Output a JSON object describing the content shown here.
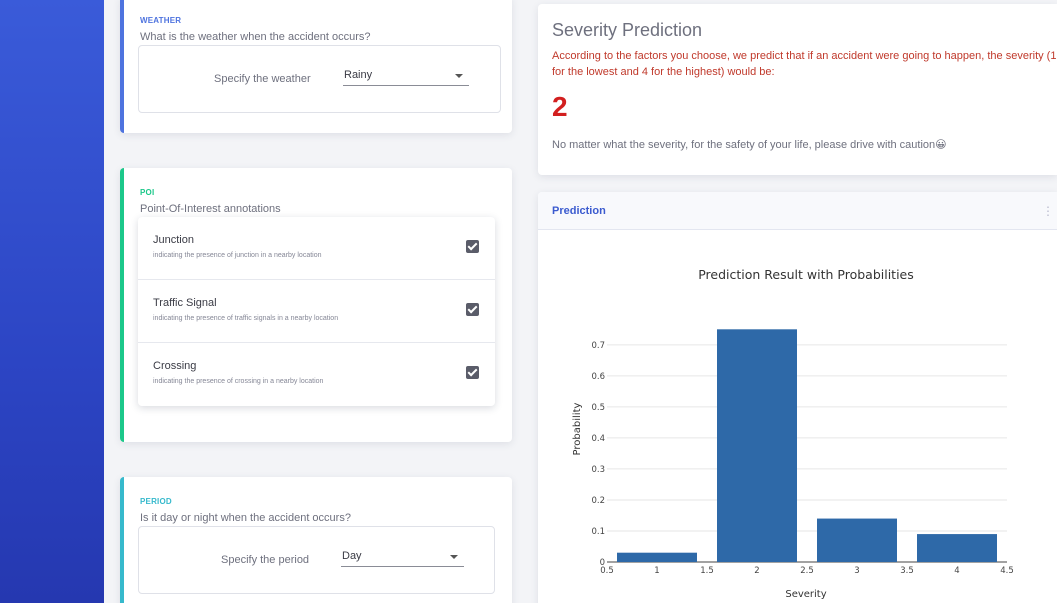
{
  "weather": {
    "section_label": "WEATHER",
    "question": "What is the weather when the accident occurs?",
    "field_label": "Specify the weather",
    "selected": "Rainy",
    "color": "#4e73df"
  },
  "poi": {
    "section_label": "POI",
    "question": "Point-Of-Interest annotations",
    "color": "#1cc88a",
    "items": [
      {
        "title": "Junction",
        "description": "indicating the presence of junction in a nearby location",
        "checked": true
      },
      {
        "title": "Traffic Signal",
        "description": "indicating the presence of traffic signals in a nearby location",
        "checked": true
      },
      {
        "title": "Crossing",
        "description": "indicating the presence of crossing in a nearby location",
        "checked": true
      }
    ]
  },
  "period": {
    "section_label": "PERIOD",
    "question": "Is it day or night when the accident occurs?",
    "field_label": "Specify the period",
    "selected": "Day",
    "color": "#36b9cc"
  },
  "severity": {
    "title": "Severity Prediction",
    "description": "According to the factors you choose, we predict that if an accident were going to happen, the severity (1 for the lowest and 4 for the highest) would be:",
    "value": "2",
    "note": "No matter what the severity, for the safety of your life, please drive with caution😀"
  },
  "prediction_card": {
    "title": "Prediction",
    "menu_icon": "more-vertical-icon"
  },
  "chart_data": {
    "type": "bar",
    "title": "Prediction Result with Probabilities",
    "xlabel": "Severity",
    "ylabel": "Probability",
    "x": [
      1,
      2,
      3,
      4
    ],
    "values": [
      0.03,
      0.75,
      0.14,
      0.09
    ],
    "xlim": [
      0.5,
      4.5
    ],
    "ylim": [
      0,
      0.78
    ],
    "xticks": [
      "0.5",
      "1",
      "1.5",
      "2",
      "2.5",
      "3",
      "3.5",
      "4",
      "4.5"
    ],
    "yticks": [
      "0",
      "0.1",
      "0.2",
      "0.3",
      "0.4",
      "0.5",
      "0.6",
      "0.7"
    ],
    "bar_color": "#2e69a8",
    "grid": true
  }
}
